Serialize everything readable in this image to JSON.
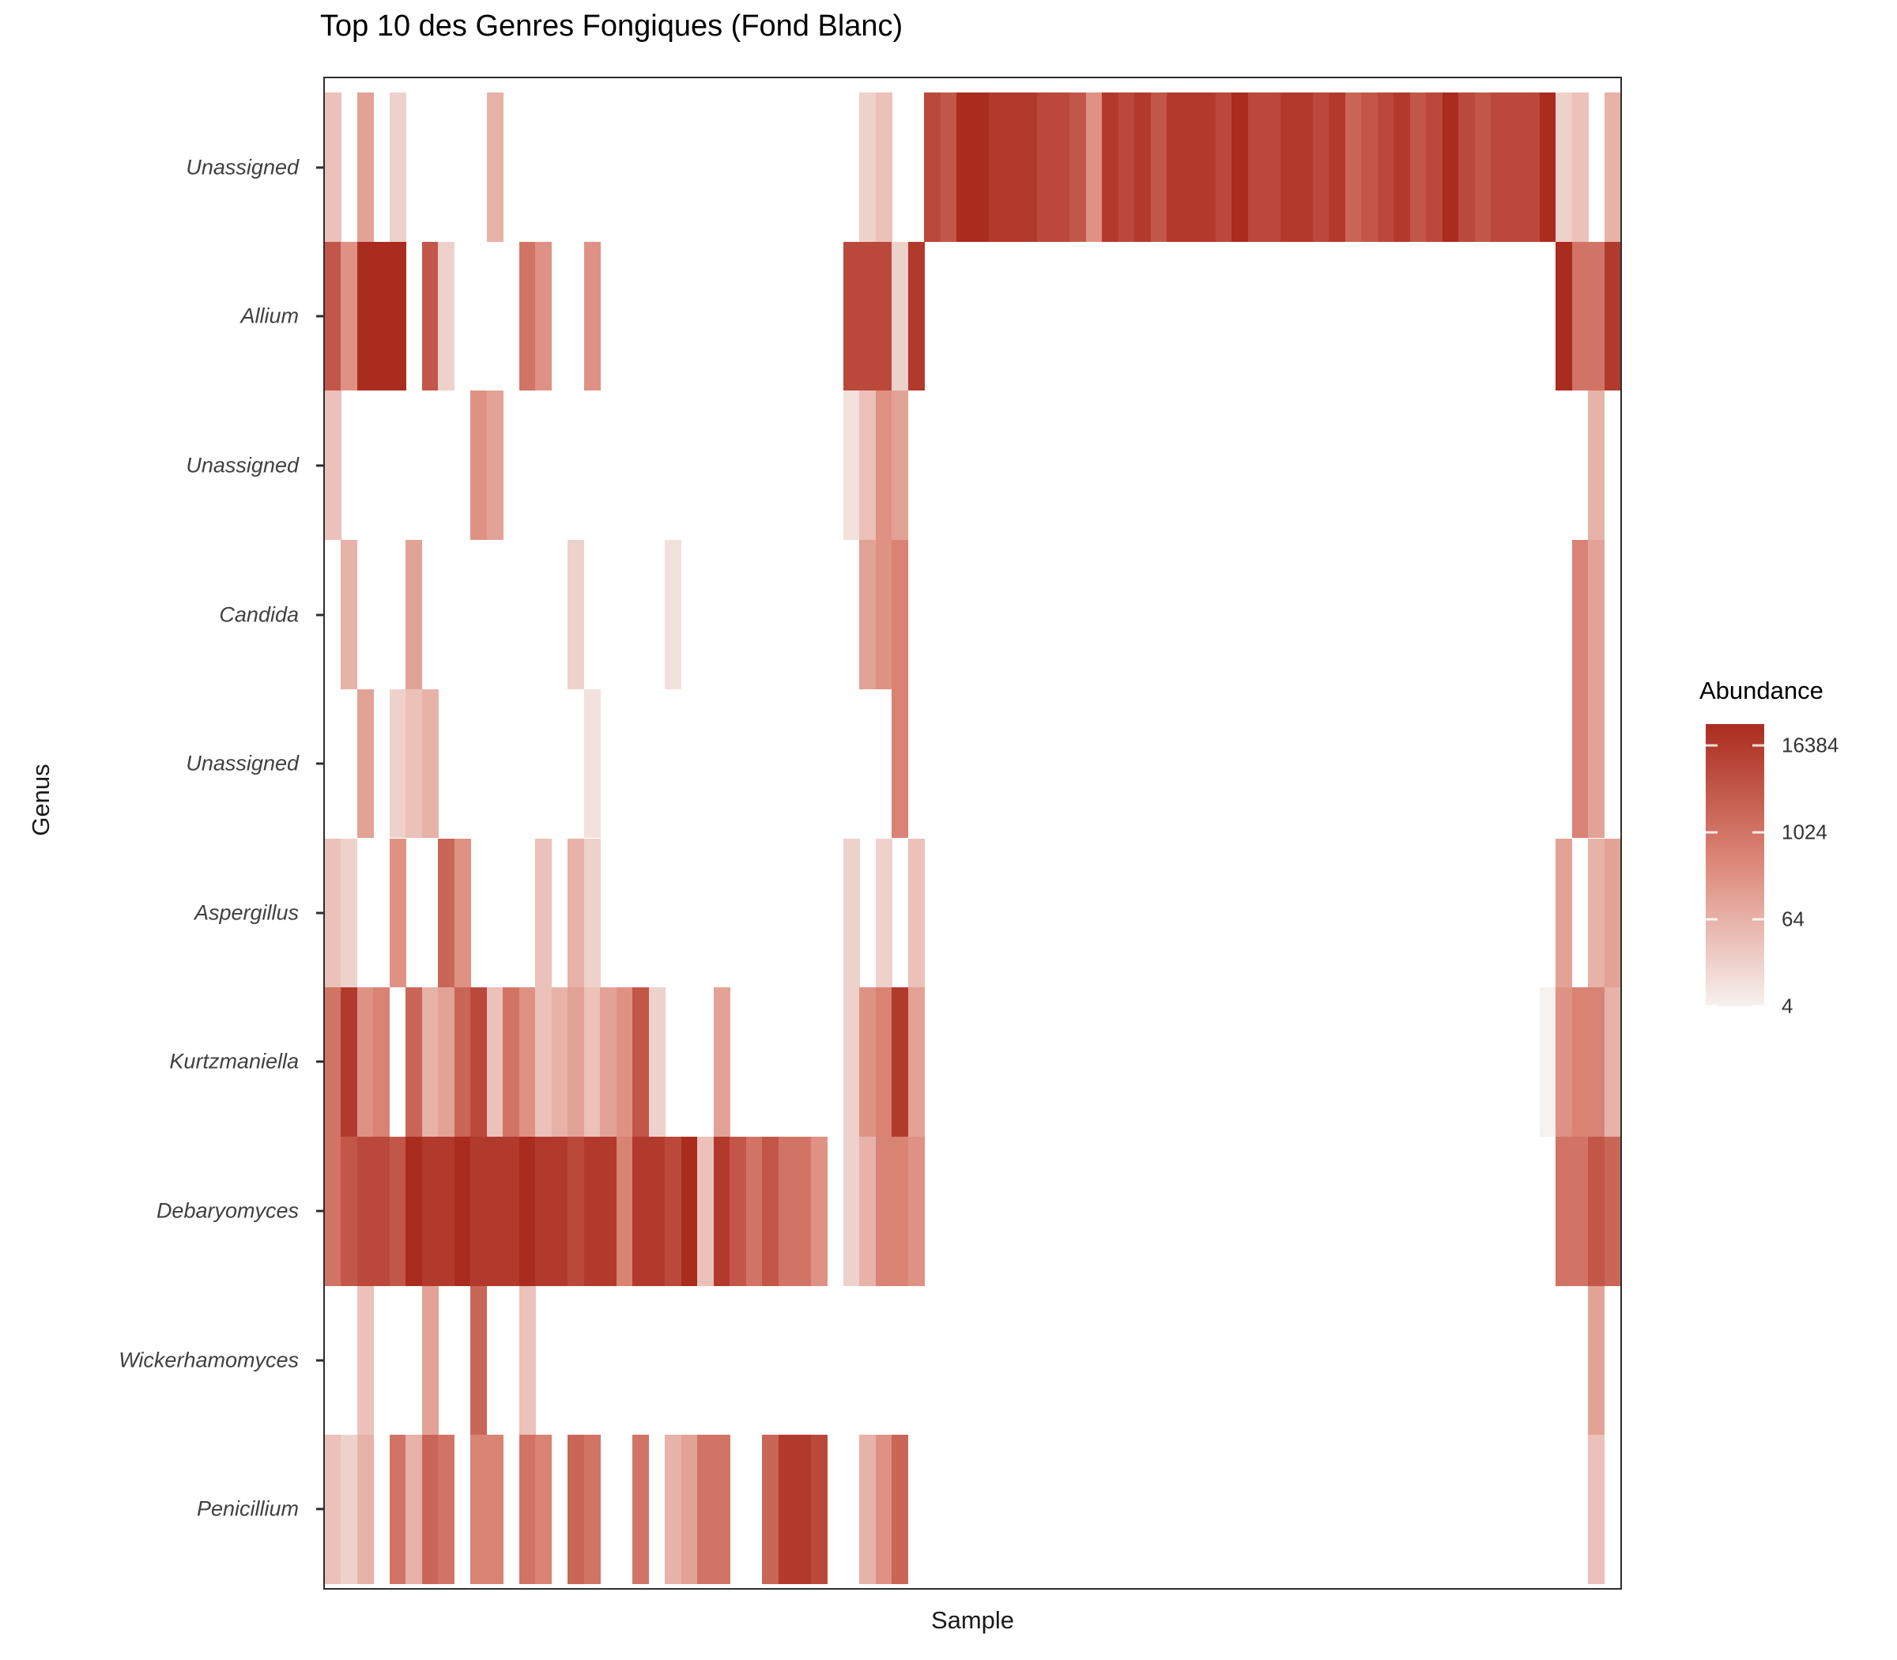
{
  "title": "Top 10 des Genres Fongiques (Fond Blanc)",
  "axes": {
    "x_title": "Sample",
    "y_title": "Genus",
    "x_tick_labels_visible": false
  },
  "legend": {
    "title": "Abundance",
    "ticks": [
      "16384",
      "1024",
      "64",
      "4"
    ]
  },
  "colors": {
    "scale_low": "#f7f1ef",
    "scale_mid": "#dd8a7b",
    "scale_high": "#aa2c1e",
    "panel_border": "#2e2e2e",
    "text": "#1a1a1a",
    "tick_text": "#404040",
    "background": "#ffffff"
  },
  "chart_data": {
    "type": "heatmap",
    "title": "Top 10 des Genres Fongiques (Fond Blanc)",
    "xlabel": "Sample",
    "ylabel": "Genus",
    "n_samples": 80,
    "x_tick_labels": [],
    "legend_title": "Abundance",
    "scale": {
      "type": "log2",
      "domain": [
        4,
        32768
      ],
      "legend_ticks": [
        4,
        64,
        1024,
        16384
      ]
    },
    "genera": [
      "Unassigned",
      "Allium",
      "Unassigned",
      "Candida",
      "Unassigned",
      "Aspergillus",
      "Kurtzmaniella",
      "Debaryomyces",
      "Wickerhamomyces",
      "Penicillium"
    ],
    "note": "cells = [sample_index, abundance]; samples without a tile are NA (white)",
    "rows": [
      {
        "genus": "Unassigned",
        "cells": [
          [
            0,
            32
          ],
          [
            2,
            128
          ],
          [
            4,
            16
          ],
          [
            10,
            64
          ],
          [
            33,
            16
          ],
          [
            34,
            32
          ],
          [
            37,
            8192
          ],
          [
            38,
            4096
          ],
          [
            39,
            32768
          ],
          [
            40,
            32768
          ],
          [
            41,
            16384
          ],
          [
            42,
            16384
          ],
          [
            43,
            16384
          ],
          [
            44,
            8192
          ],
          [
            45,
            8192
          ],
          [
            46,
            4096
          ],
          [
            47,
            256
          ],
          [
            48,
            16384
          ],
          [
            49,
            8192
          ],
          [
            50,
            16384
          ],
          [
            51,
            4096
          ],
          [
            52,
            16384
          ],
          [
            53,
            16384
          ],
          [
            54,
            16384
          ],
          [
            55,
            8192
          ],
          [
            56,
            32768
          ],
          [
            57,
            8192
          ],
          [
            58,
            8192
          ],
          [
            59,
            16384
          ],
          [
            60,
            16384
          ],
          [
            61,
            8192
          ],
          [
            62,
            16384
          ],
          [
            63,
            2048
          ],
          [
            64,
            4096
          ],
          [
            65,
            8192
          ],
          [
            66,
            16384
          ],
          [
            67,
            4096
          ],
          [
            68,
            8192
          ],
          [
            69,
            32768
          ],
          [
            70,
            8192
          ],
          [
            71,
            4096
          ],
          [
            72,
            8192
          ],
          [
            73,
            8192
          ],
          [
            74,
            8192
          ],
          [
            75,
            32768
          ],
          [
            76,
            16
          ],
          [
            77,
            32
          ],
          [
            79,
            64
          ]
        ]
      },
      {
        "genus": "Allium",
        "cells": [
          [
            0,
            4096
          ],
          [
            1,
            256
          ],
          [
            2,
            32768
          ],
          [
            3,
            32768
          ],
          [
            4,
            32768
          ],
          [
            6,
            4096
          ],
          [
            7,
            16
          ],
          [
            12,
            1024
          ],
          [
            13,
            256
          ],
          [
            16,
            256
          ],
          [
            32,
            8192
          ],
          [
            33,
            8192
          ],
          [
            34,
            8192
          ],
          [
            35,
            16
          ],
          [
            36,
            16384
          ],
          [
            76,
            32768
          ],
          [
            77,
            1024
          ],
          [
            78,
            1024
          ],
          [
            79,
            16384
          ]
        ]
      },
      {
        "genus": "Unassigned",
        "cells": [
          [
            0,
            32
          ],
          [
            9,
            256
          ],
          [
            10,
            128
          ],
          [
            32,
            8
          ],
          [
            33,
            32
          ],
          [
            34,
            256
          ],
          [
            35,
            128
          ],
          [
            78,
            64
          ]
        ]
      },
      {
        "genus": "Candida",
        "cells": [
          [
            1,
            64
          ],
          [
            5,
            128
          ],
          [
            15,
            16
          ],
          [
            21,
            8
          ],
          [
            33,
            128
          ],
          [
            34,
            256
          ],
          [
            35,
            512
          ],
          [
            77,
            512
          ],
          [
            78,
            128
          ]
        ]
      },
      {
        "genus": "Unassigned",
        "cells": [
          [
            2,
            128
          ],
          [
            4,
            16
          ],
          [
            5,
            32
          ],
          [
            6,
            64
          ],
          [
            16,
            8
          ],
          [
            35,
            512
          ],
          [
            77,
            512
          ],
          [
            78,
            128
          ]
        ]
      },
      {
        "genus": "Aspergillus",
        "cells": [
          [
            0,
            32
          ],
          [
            1,
            16
          ],
          [
            4,
            256
          ],
          [
            7,
            2048
          ],
          [
            8,
            256
          ],
          [
            13,
            32
          ],
          [
            15,
            64
          ],
          [
            16,
            16
          ],
          [
            32,
            16
          ],
          [
            34,
            16
          ],
          [
            36,
            32
          ],
          [
            76,
            128
          ],
          [
            78,
            64
          ],
          [
            79,
            128
          ]
        ]
      },
      {
        "genus": "Kurtzmaniella",
        "cells": [
          [
            0,
            1024
          ],
          [
            1,
            16384
          ],
          [
            2,
            256
          ],
          [
            3,
            512
          ],
          [
            5,
            2048
          ],
          [
            6,
            64
          ],
          [
            7,
            128
          ],
          [
            8,
            2048
          ],
          [
            9,
            8192
          ],
          [
            10,
            32
          ],
          [
            11,
            1024
          ],
          [
            12,
            256
          ],
          [
            13,
            32
          ],
          [
            14,
            64
          ],
          [
            15,
            128
          ],
          [
            16,
            32
          ],
          [
            17,
            128
          ],
          [
            18,
            256
          ],
          [
            19,
            4096
          ],
          [
            20,
            16
          ],
          [
            24,
            128
          ],
          [
            32,
            16
          ],
          [
            33,
            256
          ],
          [
            34,
            512
          ],
          [
            35,
            16384
          ],
          [
            36,
            128
          ],
          [
            75,
            4
          ],
          [
            76,
            256
          ],
          [
            77,
            512
          ],
          [
            78,
            512
          ],
          [
            79,
            64
          ]
        ]
      },
      {
        "genus": "Debaryomyces",
        "cells": [
          [
            0,
            1024
          ],
          [
            1,
            4096
          ],
          [
            2,
            8192
          ],
          [
            3,
            8192
          ],
          [
            4,
            4096
          ],
          [
            5,
            32768
          ],
          [
            6,
            16384
          ],
          [
            7,
            16384
          ],
          [
            8,
            32768
          ],
          [
            9,
            16384
          ],
          [
            10,
            16384
          ],
          [
            11,
            16384
          ],
          [
            12,
            32768
          ],
          [
            13,
            16384
          ],
          [
            14,
            16384
          ],
          [
            15,
            8192
          ],
          [
            16,
            16384
          ],
          [
            17,
            16384
          ],
          [
            18,
            512
          ],
          [
            19,
            16384
          ],
          [
            20,
            16384
          ],
          [
            21,
            8192
          ],
          [
            22,
            32768
          ],
          [
            23,
            32
          ],
          [
            24,
            16384
          ],
          [
            25,
            4096
          ],
          [
            26,
            1024
          ],
          [
            27,
            4096
          ],
          [
            28,
            1024
          ],
          [
            29,
            1024
          ],
          [
            30,
            256
          ],
          [
            32,
            16
          ],
          [
            33,
            64
          ],
          [
            34,
            512
          ],
          [
            35,
            512
          ],
          [
            36,
            256
          ],
          [
            76,
            1024
          ],
          [
            77,
            1024
          ],
          [
            78,
            4096
          ],
          [
            79,
            2048
          ]
        ]
      },
      {
        "genus": "Wickerhamomyces",
        "cells": [
          [
            2,
            32
          ],
          [
            6,
            128
          ],
          [
            9,
            2048
          ],
          [
            12,
            32
          ],
          [
            78,
            128
          ]
        ]
      },
      {
        "genus": "Penicillium",
        "cells": [
          [
            0,
            32
          ],
          [
            1,
            16
          ],
          [
            2,
            64
          ],
          [
            4,
            1024
          ],
          [
            5,
            64
          ],
          [
            6,
            2048
          ],
          [
            7,
            1024
          ],
          [
            9,
            512
          ],
          [
            10,
            512
          ],
          [
            12,
            1024
          ],
          [
            13,
            512
          ],
          [
            15,
            2048
          ],
          [
            16,
            1024
          ],
          [
            19,
            1024
          ],
          [
            21,
            64
          ],
          [
            22,
            128
          ],
          [
            23,
            1024
          ],
          [
            24,
            1024
          ],
          [
            27,
            2048
          ],
          [
            28,
            16384
          ],
          [
            29,
            16384
          ],
          [
            30,
            8192
          ],
          [
            33,
            64
          ],
          [
            34,
            256
          ],
          [
            35,
            2048
          ],
          [
            78,
            32
          ]
        ]
      }
    ]
  }
}
